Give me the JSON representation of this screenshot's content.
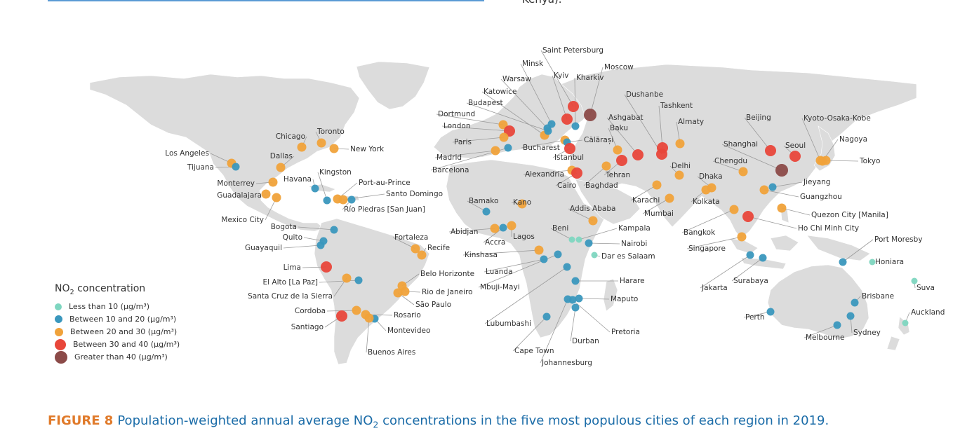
{
  "header_fragment": "Kenya).",
  "legend": {
    "title_prefix": "NO",
    "title_sub": "2",
    "title_suffix": " concentration",
    "items": [
      {
        "label": "Less than 10 (µg/m³)",
        "color": "#7ed6c0"
      },
      {
        "label": "Between 10 and 20 (µg/m³)",
        "color": "#3a97bd"
      },
      {
        "label": "Between 20 and 30 (µg/m³)",
        "color": "#f0a23a"
      },
      {
        "label": "Between 30 and 40 (µg/m³)",
        "color": "#e8463a"
      },
      {
        "label": "Greater than 40 (µg/m³)",
        "color": "#8b4a48"
      }
    ]
  },
  "caption": {
    "figure": "FIGURE 8",
    "text_before": "Population-weighted annual average NO",
    "text_sub": "2",
    "text_after": " concentrations in the five most populous cities of each region in 2019."
  },
  "cities": [
    {
      "name": "Los Angeles",
      "cat": 2
    },
    {
      "name": "Tijuana",
      "cat": 1
    },
    {
      "name": "Chicago",
      "cat": 2
    },
    {
      "name": "Toronto",
      "cat": 2
    },
    {
      "name": "New York",
      "cat": 2
    },
    {
      "name": "Dallas",
      "cat": 2
    },
    {
      "name": "Monterrey",
      "cat": 2
    },
    {
      "name": "Guadalajara",
      "cat": 2
    },
    {
      "name": "Mexico City",
      "cat": 2
    },
    {
      "name": "Havana",
      "cat": 1
    },
    {
      "name": "Kingston",
      "cat": 1
    },
    {
      "name": "Port-au-Prince",
      "cat": 2
    },
    {
      "name": "Santo Domingo",
      "cat": 2
    },
    {
      "name": "Río Piedras [San Juan]",
      "cat": 1
    },
    {
      "name": "Bogota",
      "cat": 1
    },
    {
      "name": "Quito",
      "cat": 1
    },
    {
      "name": "Guayaquil",
      "cat": 1
    },
    {
      "name": "Lima",
      "cat": 3
    },
    {
      "name": "El Alto [La Paz]",
      "cat": 1
    },
    {
      "name": "Santa Cruz de la Sierra",
      "cat": 2
    },
    {
      "name": "Cordoba",
      "cat": 2
    },
    {
      "name": "Santiago",
      "cat": 3
    },
    {
      "name": "Rosario",
      "cat": 2
    },
    {
      "name": "Montevideo",
      "cat": 1
    },
    {
      "name": "Buenos Aires",
      "cat": 2
    },
    {
      "name": "Fortaleza",
      "cat": 2
    },
    {
      "name": "Recife",
      "cat": 2
    },
    {
      "name": "Belo Horizonte",
      "cat": 2
    },
    {
      "name": "Rio de Janeiro",
      "cat": 2
    },
    {
      "name": "São Paulo",
      "cat": 2
    },
    {
      "name": "Saint Petersburg",
      "cat": 3
    },
    {
      "name": "Minsk",
      "cat": 1
    },
    {
      "name": "Kyiv",
      "cat": 3
    },
    {
      "name": "Kharkiv",
      "cat": 1
    },
    {
      "name": "Moscow",
      "cat": 4
    },
    {
      "name": "Warsaw",
      "cat": 1
    },
    {
      "name": "Katowice",
      "cat": 2
    },
    {
      "name": "Budapest",
      "cat": 1
    },
    {
      "name": "Dortmund",
      "cat": 2
    },
    {
      "name": "London",
      "cat": 3
    },
    {
      "name": "Paris",
      "cat": 2
    },
    {
      "name": "Madrid",
      "cat": 2
    },
    {
      "name": "Barcelona",
      "cat": 1
    },
    {
      "name": "Bucharest",
      "cat": 2
    },
    {
      "name": "Călărași",
      "cat": 1
    },
    {
      "name": "Istanbul",
      "cat": 3
    },
    {
      "name": "Alexandria",
      "cat": 2
    },
    {
      "name": "Cairo",
      "cat": 3
    },
    {
      "name": "Baghdad",
      "cat": 2
    },
    {
      "name": "Tehran",
      "cat": 3
    },
    {
      "name": "Baku",
      "cat": 2
    },
    {
      "name": "Ashgabat",
      "cat": 3
    },
    {
      "name": "Dushanbe",
      "cat": 3
    },
    {
      "name": "Tashkent",
      "cat": 3
    },
    {
      "name": "Almaty",
      "cat": 2
    },
    {
      "name": "Delhi",
      "cat": 2
    },
    {
      "name": "Karachi",
      "cat": 2
    },
    {
      "name": "Mumbai",
      "cat": 2
    },
    {
      "name": "Dhaka",
      "cat": 2
    },
    {
      "name": "Kolkata",
      "cat": 2
    },
    {
      "name": "Chengdu",
      "cat": 2
    },
    {
      "name": "Beijing",
      "cat": 3
    },
    {
      "name": "Shanghai",
      "cat": 4
    },
    {
      "name": "Seoul",
      "cat": 3
    },
    {
      "name": "Kyoto-Osaka-Kobe",
      "cat": 2
    },
    {
      "name": "Nagoya",
      "cat": 2
    },
    {
      "name": "Tokyo",
      "cat": 2
    },
    {
      "name": "Jieyang",
      "cat": 1
    },
    {
      "name": "Guangzhou",
      "cat": 2
    },
    {
      "name": "Quezon City [Manila]",
      "cat": 2
    },
    {
      "name": "Ho Chi Minh City",
      "cat": 3
    },
    {
      "name": "Bangkok",
      "cat": 2
    },
    {
      "name": "Singapore",
      "cat": 2
    },
    {
      "name": "Jakarta",
      "cat": 1
    },
    {
      "name": "Surabaya",
      "cat": 1
    },
    {
      "name": "Bamako",
      "cat": 1
    },
    {
      "name": "Kano",
      "cat": 2
    },
    {
      "name": "Abidjan",
      "cat": 2
    },
    {
      "name": "Accra",
      "cat": 1
    },
    {
      "name": "Lagos",
      "cat": 2
    },
    {
      "name": "Addis Ababa",
      "cat": 2
    },
    {
      "name": "Beni",
      "cat": 0
    },
    {
      "name": "Kampala",
      "cat": 0
    },
    {
      "name": "Nairobi",
      "cat": 1
    },
    {
      "name": "Dar es Salaam",
      "cat": 0
    },
    {
      "name": "Kinshasa",
      "cat": 2
    },
    {
      "name": "Luanda",
      "cat": 1
    },
    {
      "name": "Mbuji-Mayi",
      "cat": 1
    },
    {
      "name": "Harare",
      "cat": 1
    },
    {
      "name": "Lubumbashi",
      "cat": 1
    },
    {
      "name": "Maputo",
      "cat": 1
    },
    {
      "name": "Pretoria",
      "cat": 1
    },
    {
      "name": "Johannesburg",
      "cat": 1
    },
    {
      "name": "Durban",
      "cat": 1
    },
    {
      "name": "Cape Town",
      "cat": 1
    },
    {
      "name": "Port Moresby",
      "cat": 1
    },
    {
      "name": "Honiara",
      "cat": 0
    },
    {
      "name": "Suva",
      "cat": 0
    },
    {
      "name": "Auckland",
      "cat": 0
    },
    {
      "name": "Brisbane",
      "cat": 1
    },
    {
      "name": "Sydney",
      "cat": 1
    },
    {
      "name": "Melbourne",
      "cat": 1
    },
    {
      "name": "Perth",
      "cat": 1
    }
  ]
}
